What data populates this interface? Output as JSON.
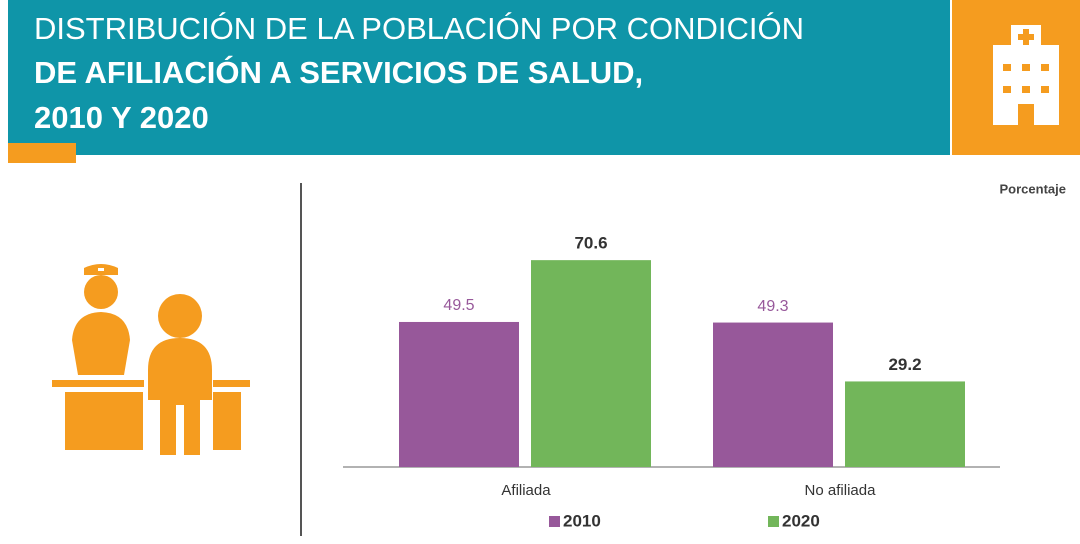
{
  "header": {
    "title_lines": [
      "DISTRIBUCIÓN DE LA POBLACIÓN POR CONDICIÓN",
      "DE AFILIACIÓN A SERVICIOS DE SALUD,",
      "2010 Y 2020"
    ]
  },
  "chart_data": {
    "type": "bar",
    "unit_label": "Porcentaje",
    "categories": [
      "Afiliada",
      "No afiliada"
    ],
    "series": [
      {
        "name": "2010",
        "color": "#97589a",
        "values": [
          49.5,
          49.3
        ]
      },
      {
        "name": "2020",
        "color": "#72b65a",
        "values": [
          70.6,
          29.2
        ]
      }
    ]
  }
}
